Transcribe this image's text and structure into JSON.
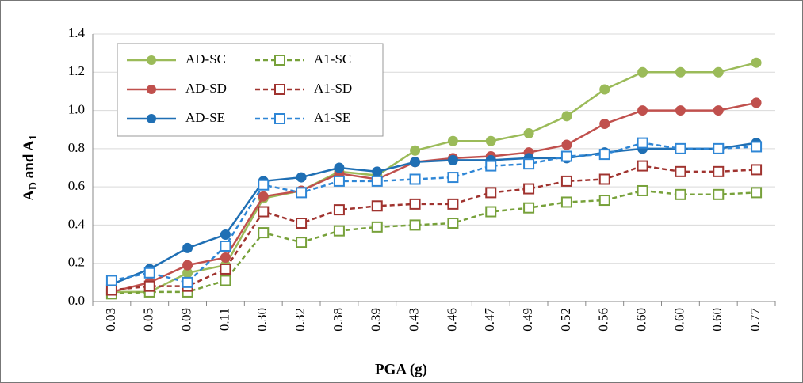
{
  "chart_data": {
    "type": "line",
    "x_label": "PGA (g)",
    "y_label": [
      "A",
      "D",
      " and A",
      "1"
    ],
    "categories": [
      "0.03",
      "0.05",
      "0.09",
      "0.11",
      "0.30",
      "0.32",
      "0.38",
      "0.39",
      "0.43",
      "0.46",
      "0.47",
      "0.49",
      "0.52",
      "0.56",
      "0.60",
      "0.60",
      "0.60",
      "0.77"
    ],
    "ylim": [
      0,
      1.4
    ],
    "yticks": [
      {
        "value": 0,
        "label": "0.0"
      },
      0.2,
      0.4,
      0.6,
      0.8,
      {
        "value": 1,
        "label": "1.0"
      },
      1.2,
      1.4
    ],
    "grid": true,
    "legend": "top-left",
    "series": [
      {
        "name": "AD-SC",
        "color": "#9bbb59",
        "line_style": "solid",
        "marker": "circle",
        "values": [
          0.05,
          0.05,
          0.15,
          0.19,
          0.54,
          0.58,
          0.68,
          0.66,
          0.79,
          0.84,
          0.84,
          0.88,
          0.97,
          1.11,
          1.2,
          1.2,
          1.2,
          1.25
        ]
      },
      {
        "name": "AD-SD",
        "color": "#c0504d",
        "line_style": "solid",
        "marker": "circle",
        "values": [
          0.05,
          0.1,
          0.19,
          0.23,
          0.55,
          0.58,
          0.67,
          0.64,
          0.73,
          0.75,
          0.76,
          0.78,
          0.82,
          0.93,
          1.0,
          1.0,
          1.0,
          1.04
        ]
      },
      {
        "name": "AD-SE",
        "color": "#1f6fb4",
        "line_style": "solid",
        "marker": "circle",
        "values": [
          0.09,
          0.17,
          0.28,
          0.35,
          0.63,
          0.65,
          0.7,
          0.68,
          0.73,
          0.74,
          0.74,
          0.75,
          0.75,
          0.78,
          0.8,
          0.8,
          0.8,
          0.83
        ]
      },
      {
        "name": "A1-SC",
        "color": "#77a13a",
        "line_style": "dashed",
        "marker": "square",
        "values": [
          0.04,
          0.05,
          0.05,
          0.11,
          0.36,
          0.31,
          0.37,
          0.39,
          0.4,
          0.41,
          0.47,
          0.49,
          0.52,
          0.53,
          0.58,
          0.56,
          0.56,
          0.57
        ]
      },
      {
        "name": "A1-SD",
        "color": "#a0332f",
        "line_style": "dashed",
        "marker": "square",
        "values": [
          0.06,
          0.08,
          0.08,
          0.17,
          0.47,
          0.41,
          0.48,
          0.5,
          0.51,
          0.51,
          0.57,
          0.59,
          0.63,
          0.64,
          0.71,
          0.68,
          0.68,
          0.69
        ]
      },
      {
        "name": "A1-SE",
        "color": "#2e86d6",
        "line_style": "dashed",
        "marker": "square",
        "values": [
          0.11,
          0.15,
          0.1,
          0.29,
          0.61,
          0.57,
          0.63,
          0.63,
          0.64,
          0.65,
          0.71,
          0.72,
          0.76,
          0.77,
          0.83,
          0.8,
          0.8,
          0.81
        ]
      }
    ]
  }
}
